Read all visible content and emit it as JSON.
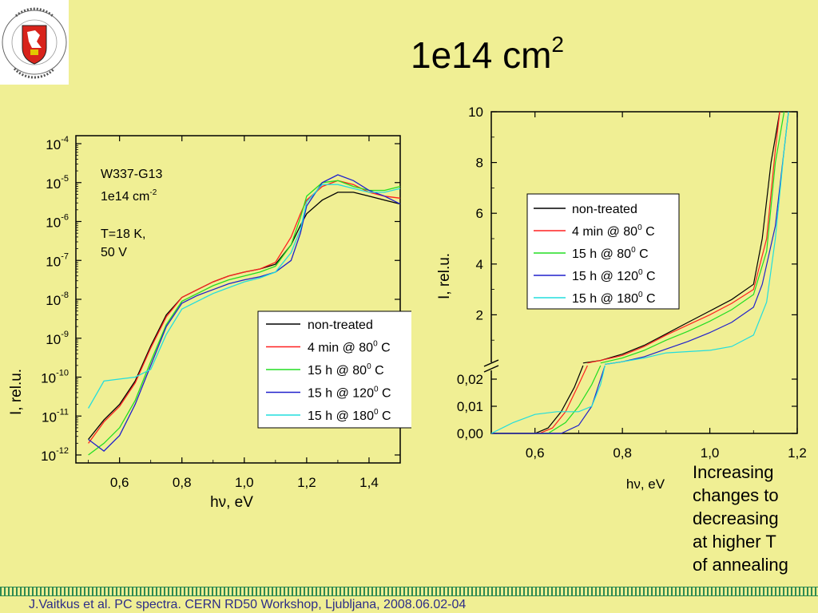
{
  "slide": {
    "title_base": "1e14 cm",
    "title_sup": "2",
    "note_lines": [
      "Increasing",
      "changes to",
      "decreasing",
      "at higher T",
      "of annealing"
    ],
    "footer": "J.Vaitkus et al. PC spectra. CERN RD50 Workshop, Ljubljana, 2008.06.02-04",
    "logo_text_top": "VILNIAUS UNIVERSITETAS · 1579 ·",
    "logo_text_bottom": "UNIVERSITAS VILNENSIS"
  },
  "colors": {
    "background": "#f0ef94",
    "non-treated": "#000000",
    "4 min @ 80 C": "#ff2020",
    "15 h @ 80 C": "#22dd22",
    "15 h @ 120 C": "#2020cc",
    "15 h @ 180 C": "#22dddd",
    "footer_text": "#2d2d88",
    "footer_rule": "#2f8a52"
  },
  "chart_data": [
    {
      "type": "line",
      "yscale": "log",
      "xlabel": "hν, eV",
      "ylabel": "I, rel.u.",
      "xlim": [
        0.46,
        1.5
      ],
      "ylim": [
        1e-12,
        0.0001
      ],
      "xticks": [
        "0,6",
        "0,8",
        "1,0",
        "1,2",
        "1,4"
      ],
      "yticks_base": [
        "10",
        "10",
        "10",
        "10",
        "10",
        "10",
        "10",
        "10",
        "10"
      ],
      "yticks_exp": [
        "-4",
        "-5",
        "-6",
        "-7",
        "-8",
        "-9",
        "-10",
        "-11",
        "-12"
      ],
      "annotations": [
        "W337-G13",
        "1e14 cm",
        "-2",
        "T=18 K,",
        "50 V"
      ],
      "legend": {
        "position": "lower-right",
        "entries": [
          {
            "base": "non-treated",
            "sup": "",
            "suffix": ""
          },
          {
            "base": "4 min @ 80",
            "sup": "0",
            "suffix": " C"
          },
          {
            "base": "15 h @ 80",
            "sup": "0",
            "suffix": " C"
          },
          {
            "base": "15 h @ 120",
            "sup": "0",
            "suffix": " C"
          },
          {
            "base": "15 h @ 180",
            "sup": "0",
            "suffix": " C"
          }
        ]
      },
      "series": [
        {
          "name": "non-treated",
          "x": [
            0.5,
            0.55,
            0.6,
            0.65,
            0.7,
            0.75,
            0.8,
            0.85,
            0.9,
            0.95,
            1.0,
            1.05,
            1.1,
            1.15,
            1.18,
            1.2,
            1.25,
            1.3,
            1.35,
            1.4,
            1.45,
            1.5
          ],
          "y": [
            -11.6,
            -11.1,
            -10.7,
            -10.1,
            -9.2,
            -8.4,
            -7.95,
            -7.75,
            -7.55,
            -7.4,
            -7.3,
            -7.22,
            -7.1,
            -6.6,
            -6.1,
            -5.8,
            -5.45,
            -5.25,
            -5.25,
            -5.35,
            -5.45,
            -5.55
          ]
        },
        {
          "name": "4 min @ 80 C",
          "x": [
            0.5,
            0.55,
            0.6,
            0.65,
            0.7,
            0.75,
            0.8,
            0.85,
            0.9,
            0.95,
            1.0,
            1.05,
            1.1,
            1.15,
            1.18,
            1.2,
            1.25,
            1.3,
            1.35,
            1.4,
            1.45,
            1.5
          ],
          "y": [
            -11.7,
            -11.15,
            -10.75,
            -10.15,
            -9.25,
            -8.45,
            -7.95,
            -7.75,
            -7.55,
            -7.4,
            -7.3,
            -7.22,
            -7.05,
            -6.4,
            -5.8,
            -5.45,
            -5.1,
            -4.95,
            -5.05,
            -5.25,
            -5.35,
            -5.4
          ]
        },
        {
          "name": "15 h @ 80 C",
          "x": [
            0.5,
            0.55,
            0.6,
            0.65,
            0.7,
            0.75,
            0.8,
            0.85,
            0.9,
            0.95,
            1.0,
            1.05,
            1.1,
            1.15,
            1.18,
            1.2,
            1.25,
            1.3,
            1.35,
            1.4,
            1.45,
            1.5
          ],
          "y": [
            -12.0,
            -11.7,
            -11.3,
            -10.6,
            -9.6,
            -8.65,
            -8.05,
            -7.85,
            -7.65,
            -7.5,
            -7.4,
            -7.3,
            -7.15,
            -6.6,
            -5.9,
            -5.35,
            -5.0,
            -4.95,
            -5.1,
            -5.2,
            -5.2,
            -5.1
          ]
        },
        {
          "name": "15 h @ 120 C",
          "x": [
            0.5,
            0.55,
            0.6,
            0.65,
            0.7,
            0.75,
            0.8,
            0.85,
            0.9,
            0.95,
            1.0,
            1.05,
            1.1,
            1.15,
            1.18,
            1.2,
            1.25,
            1.3,
            1.35,
            1.4,
            1.45,
            1.5
          ],
          "y": [
            -11.6,
            -11.9,
            -11.5,
            -10.7,
            -9.7,
            -8.7,
            -8.1,
            -7.9,
            -7.75,
            -7.6,
            -7.5,
            -7.42,
            -7.3,
            -7.0,
            -6.3,
            -5.6,
            -5.0,
            -4.8,
            -4.95,
            -5.2,
            -5.35,
            -5.55
          ]
        },
        {
          "name": "15 h @ 180 C",
          "x": [
            0.5,
            0.55,
            0.6,
            0.65,
            0.7,
            0.75,
            0.8,
            0.85,
            0.9,
            0.95,
            1.0,
            1.05,
            1.1,
            1.15,
            1.18,
            1.2,
            1.25,
            1.3,
            1.35,
            1.4,
            1.45,
            1.5
          ],
          "y": [
            -10.8,
            -10.1,
            -10.05,
            -10.0,
            -9.8,
            -8.9,
            -8.25,
            -8.05,
            -7.85,
            -7.7,
            -7.55,
            -7.45,
            -7.3,
            -6.8,
            -6.2,
            -5.5,
            -5.05,
            -5.05,
            -5.15,
            -5.25,
            -5.25,
            -5.15
          ]
        }
      ]
    },
    {
      "type": "line",
      "xlabel": "hν, eV",
      "ylabel": "I, rel.u.",
      "xlim": [
        0.5,
        1.2
      ],
      "ylim_lower": [
        0.0,
        0.025
      ],
      "ylim_upper": [
        0.0,
        10
      ],
      "xticks": [
        "0,6",
        "0,8",
        "1,0",
        "1,2"
      ],
      "yticks_upper": [
        "10",
        "8",
        "6",
        "4",
        "2"
      ],
      "yticks_lower": [
        "0,02",
        "0,01",
        "0,00"
      ],
      "legend": {
        "position": "upper-left",
        "entries": [
          {
            "base": "non-treated",
            "sup": "",
            "suffix": ""
          },
          {
            "base": "4 min @ 80",
            "sup": "0",
            "suffix": " C"
          },
          {
            "base": "15 h @ 80",
            "sup": "0",
            "suffix": " C"
          },
          {
            "base": "15 h @ 120",
            "sup": "0",
            "suffix": " C"
          },
          {
            "base": "15 h @ 180",
            "sup": "0",
            "suffix": " C"
          }
        ]
      },
      "series": [
        {
          "name": "non-treated",
          "lower": {
            "x": [
              0.5,
              0.6,
              0.63,
              0.66,
              0.69,
              0.71
            ],
            "y": [
              0.0,
              0.0,
              0.002,
              0.008,
              0.017,
              0.025
            ]
          },
          "upper": {
            "x": [
              0.71,
              0.75,
              0.8,
              0.85,
              0.9,
              0.95,
              1.0,
              1.05,
              1.1,
              1.12,
              1.14,
              1.16
            ],
            "y": [
              0.1,
              0.2,
              0.45,
              0.8,
              1.25,
              1.7,
              2.15,
              2.6,
              3.2,
              5.0,
              8.0,
              10.0
            ]
          }
        },
        {
          "name": "4 min @ 80 C",
          "lower": {
            "x": [
              0.5,
              0.61,
              0.64,
              0.67,
              0.7,
              0.72
            ],
            "y": [
              0.0,
              0.0,
              0.002,
              0.008,
              0.018,
              0.025
            ]
          },
          "upper": {
            "x": [
              0.72,
              0.75,
              0.8,
              0.85,
              0.9,
              0.95,
              1.0,
              1.05,
              1.1,
              1.13,
              1.15,
              1.16
            ],
            "y": [
              0.1,
              0.2,
              0.4,
              0.75,
              1.2,
              1.6,
              2.0,
              2.45,
              3.0,
              5.0,
              8.5,
              10.0
            ]
          }
        },
        {
          "name": "15 h @ 80 C",
          "lower": {
            "x": [
              0.5,
              0.63,
              0.67,
              0.7,
              0.73,
              0.75
            ],
            "y": [
              0.0,
              0.0,
              0.004,
              0.01,
              0.018,
              0.025
            ]
          },
          "upper": {
            "x": [
              0.75,
              0.8,
              0.85,
              0.9,
              0.95,
              1.0,
              1.05,
              1.1,
              1.13,
              1.15,
              1.17
            ],
            "y": [
              0.1,
              0.3,
              0.6,
              1.0,
              1.35,
              1.75,
              2.2,
              2.8,
              4.5,
              8.0,
              10.0
            ]
          }
        },
        {
          "name": "15 h @ 120 C",
          "lower": {
            "x": [
              0.5,
              0.66,
              0.7,
              0.73,
              0.75,
              0.76
            ],
            "y": [
              0.0,
              0.0,
              0.003,
              0.01,
              0.02,
              0.025
            ]
          },
          "upper": {
            "x": [
              0.76,
              0.8,
              0.85,
              0.9,
              0.95,
              1.0,
              1.05,
              1.1,
              1.12,
              1.15,
              1.17,
              1.18
            ],
            "y": [
              0.05,
              0.15,
              0.35,
              0.65,
              0.95,
              1.3,
              1.7,
              2.3,
              3.2,
              5.5,
              8.5,
              10.0
            ]
          }
        },
        {
          "name": "15 h @ 180 C",
          "lower": {
            "x": [
              0.5,
              0.55,
              0.6,
              0.65,
              0.7,
              0.73,
              0.75,
              0.76
            ],
            "y": [
              0.0,
              0.004,
              0.007,
              0.008,
              0.008,
              0.01,
              0.018,
              0.025
            ]
          },
          "upper": {
            "x": [
              0.76,
              0.8,
              0.85,
              0.9,
              0.95,
              1.0,
              1.05,
              1.1,
              1.13,
              1.15,
              1.17,
              1.18
            ],
            "y": [
              0.05,
              0.15,
              0.3,
              0.5,
              0.55,
              0.6,
              0.75,
              1.2,
              2.5,
              5.0,
              8.5,
              10.0
            ]
          }
        }
      ]
    }
  ]
}
